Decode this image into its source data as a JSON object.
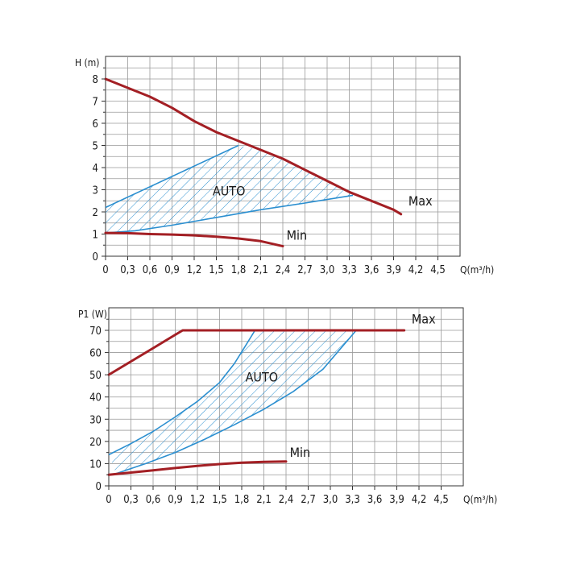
{
  "colors": {
    "max_min_curve": "#a31f24",
    "auto_band": "#2b8fd0",
    "grid": "#9a9a9a",
    "axis": "#333333"
  },
  "chart_data": [
    {
      "type": "line",
      "ylabel": "H (m)",
      "xlabel": "Q(m³/h)",
      "xlim": [
        0,
        4.8
      ],
      "ylim": [
        0,
        8
      ],
      "x_ticks": [
        "0",
        "0,3",
        "0,6",
        "0,9",
        "1,2",
        "1,5",
        "1,8",
        "2,1",
        "2,4",
        "2,7",
        "3,0",
        "3,3",
        "3,6",
        "3,9",
        "4,2",
        "4,5"
      ],
      "y_ticks": [
        "0",
        "1",
        "2",
        "3",
        "4",
        "5",
        "6",
        "7",
        "8"
      ],
      "grid": true,
      "series": [
        {
          "name": "Max",
          "points": [
            [
              0,
              8.0
            ],
            [
              0.3,
              7.6
            ],
            [
              0.6,
              7.2
            ],
            [
              0.9,
              6.7
            ],
            [
              1.2,
              6.1
            ],
            [
              1.5,
              5.6
            ],
            [
              1.8,
              5.2
            ],
            [
              2.1,
              4.8
            ],
            [
              2.4,
              4.4
            ],
            [
              2.7,
              3.9
            ],
            [
              3.0,
              3.4
            ],
            [
              3.3,
              2.9
            ],
            [
              3.6,
              2.5
            ],
            [
              3.9,
              2.1
            ],
            [
              4.0,
              1.9
            ]
          ]
        },
        {
          "name": "Min",
          "points": [
            [
              0,
              1.05
            ],
            [
              0.3,
              1.04
            ],
            [
              0.6,
              1.0
            ],
            [
              0.9,
              0.98
            ],
            [
              1.2,
              0.94
            ],
            [
              1.5,
              0.88
            ],
            [
              1.8,
              0.8
            ],
            [
              2.1,
              0.68
            ],
            [
              2.4,
              0.45
            ]
          ]
        }
      ],
      "auto_region": {
        "name": "AUTO",
        "upper": [
          [
            0,
            2.2
          ],
          [
            1.8,
            5.0
          ]
        ],
        "lower": [
          [
            0,
            1.05
          ],
          [
            0.4,
            1.15
          ],
          [
            0.9,
            1.4
          ],
          [
            1.5,
            1.75
          ],
          [
            2.1,
            2.1
          ],
          [
            2.7,
            2.4
          ],
          [
            3.35,
            2.75
          ]
        ]
      },
      "annotations": [
        {
          "text": "AUTO",
          "x": 1.45,
          "y": 2.75
        },
        {
          "text": "Max",
          "x": 4.1,
          "y": 2.3
        },
        {
          "text": "Min",
          "x": 2.45,
          "y": 0.75
        }
      ]
    },
    {
      "type": "line",
      "ylabel": "P1 (W)",
      "xlabel": "Q(m³/h)",
      "xlim": [
        0,
        4.8
      ],
      "ylim": [
        0,
        80
      ],
      "x_ticks": [
        "0",
        "0,3",
        "0,6",
        "0,9",
        "1,2",
        "1,5",
        "1,8",
        "2,1",
        "2,4",
        "2,7",
        "3,0",
        "3,3",
        "3,6",
        "3,9",
        "4,2",
        "4,5"
      ],
      "y_ticks": [
        "0",
        "10",
        "20",
        "30",
        "40",
        "50",
        "60",
        "70"
      ],
      "grid": true,
      "series": [
        {
          "name": "Max",
          "points": [
            [
              0,
              50
            ],
            [
              0.3,
              56
            ],
            [
              0.6,
              62
            ],
            [
              0.9,
              68
            ],
            [
              1.0,
              70
            ],
            [
              4.0,
              70
            ]
          ]
        },
        {
          "name": "Min",
          "points": [
            [
              0,
              5
            ],
            [
              0.3,
              6
            ],
            [
              0.6,
              7
            ],
            [
              0.9,
              8
            ],
            [
              1.2,
              9
            ],
            [
              1.5,
              9.8
            ],
            [
              1.8,
              10.4
            ],
            [
              2.1,
              10.8
            ],
            [
              2.4,
              11
            ]
          ]
        }
      ],
      "auto_region": {
        "name": "AUTO",
        "upper": [
          [
            0,
            14
          ],
          [
            0.3,
            19
          ],
          [
            0.6,
            24.5
          ],
          [
            0.9,
            31
          ],
          [
            1.2,
            38
          ],
          [
            1.5,
            46.5
          ],
          [
            1.7,
            55
          ],
          [
            1.85,
            63
          ],
          [
            1.98,
            70
          ]
        ],
        "lower": [
          [
            0.1,
            5.5
          ],
          [
            0.5,
            10
          ],
          [
            0.9,
            15
          ],
          [
            1.3,
            21
          ],
          [
            1.7,
            27.5
          ],
          [
            2.1,
            34.5
          ],
          [
            2.5,
            42.5
          ],
          [
            2.9,
            52.5
          ],
          [
            3.35,
            70
          ]
        ]
      },
      "annotations": [
        {
          "text": "AUTO",
          "x": 1.85,
          "y": 47
        },
        {
          "text": "Max",
          "x": 4.1,
          "y": 73
        },
        {
          "text": "Min",
          "x": 2.45,
          "y": 13
        }
      ]
    }
  ]
}
